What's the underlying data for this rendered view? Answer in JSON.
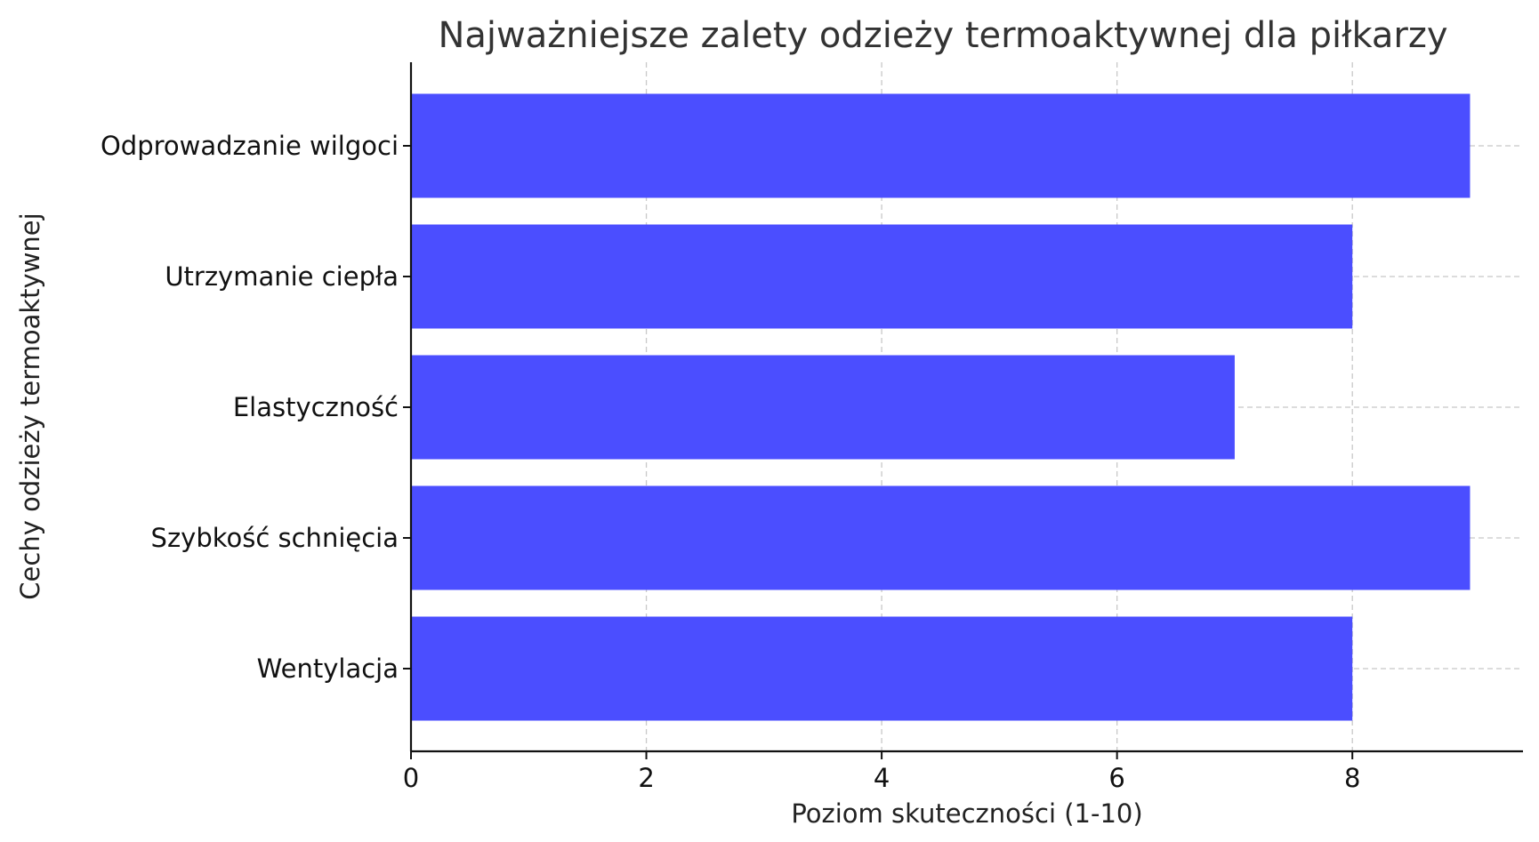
{
  "chart_data": {
    "type": "bar",
    "orientation": "horizontal",
    "title": "Najważniejsze zalety odzieży termoaktywnej dla piłkarzy",
    "xlabel": "Poziom skuteczności (1-10)",
    "ylabel": "Cechy odzieży termoaktywnej",
    "categories": [
      "Odprowadzanie wilgoci",
      "Utrzymanie ciepła",
      "Elastyczność",
      "Szybkość schnięcia",
      "Wentylacja"
    ],
    "values": [
      9,
      8,
      7,
      9,
      8
    ],
    "xlim": [
      0,
      9.45
    ],
    "xticks": [
      0,
      2,
      4,
      6,
      8
    ],
    "xtick_labels": [
      "0",
      "2",
      "4",
      "6",
      "8"
    ],
    "grid": true,
    "bar_color": "#4b4eff"
  }
}
